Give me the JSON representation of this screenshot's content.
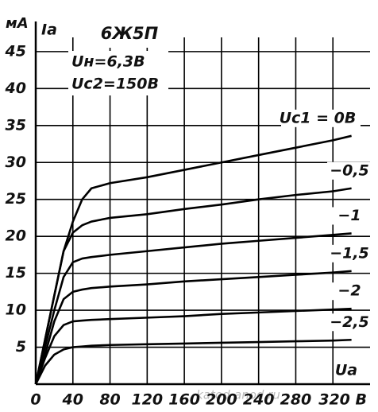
{
  "chart_data": {
    "type": "line",
    "title": "6Ж5П",
    "y_unit": "мА",
    "y_label": "Ia",
    "x_label": "Ua",
    "annotations": [
      "Uн=6,3В",
      "Uс2=150В"
    ],
    "watermark": "katod-anod.ru",
    "x": [
      0,
      10,
      20,
      30,
      40,
      50,
      60,
      80,
      120,
      160,
      200,
      240,
      280,
      320,
      340
    ],
    "series": [
      {
        "name": "Uс1 = 0В",
        "color": "#000000",
        "values": [
          0,
          6,
          12,
          18,
          22,
          25,
          26.5,
          27.2,
          28,
          29,
          30,
          31,
          32,
          33,
          33.6
        ]
      },
      {
        "name": "−0,5",
        "color": "#000000",
        "values": [
          0,
          6,
          12,
          18,
          20.5,
          21.5,
          22,
          22.5,
          23,
          23.7,
          24.3,
          25,
          25.6,
          26.1,
          26.5
        ]
      },
      {
        "name": "−1",
        "color": "#000000",
        "values": [
          0,
          5,
          10,
          14.5,
          16.5,
          17,
          17.2,
          17.5,
          18,
          18.5,
          19,
          19.4,
          19.8,
          20.2,
          20.4
        ]
      },
      {
        "name": "−1,5",
        "color": "#000000",
        "values": [
          0,
          4,
          8.5,
          11.5,
          12.5,
          12.8,
          13,
          13.2,
          13.5,
          13.9,
          14.2,
          14.5,
          14.8,
          15.1,
          15.3
        ]
      },
      {
        "name": "−2",
        "color": "#000000",
        "values": [
          0,
          3.5,
          6.5,
          8,
          8.5,
          8.6,
          8.7,
          8.8,
          9,
          9.2,
          9.5,
          9.7,
          9.9,
          10.1,
          10.2
        ]
      },
      {
        "name": "−2,5",
        "color": "#000000",
        "values": [
          0,
          2.5,
          4,
          4.7,
          5,
          5.1,
          5.2,
          5.3,
          5.4,
          5.5,
          5.6,
          5.7,
          5.8,
          5.9,
          6
        ]
      }
    ],
    "xlim": [
      0,
      360
    ],
    "ylim": [
      0,
      48
    ],
    "xticks": [
      0,
      40,
      80,
      120,
      160,
      200,
      240,
      280,
      {
        "value": 320,
        "label": "320 В"
      }
    ],
    "yticks": [
      5,
      10,
      15,
      20,
      25,
      30,
      35,
      40,
      45
    ],
    "grid": true
  }
}
